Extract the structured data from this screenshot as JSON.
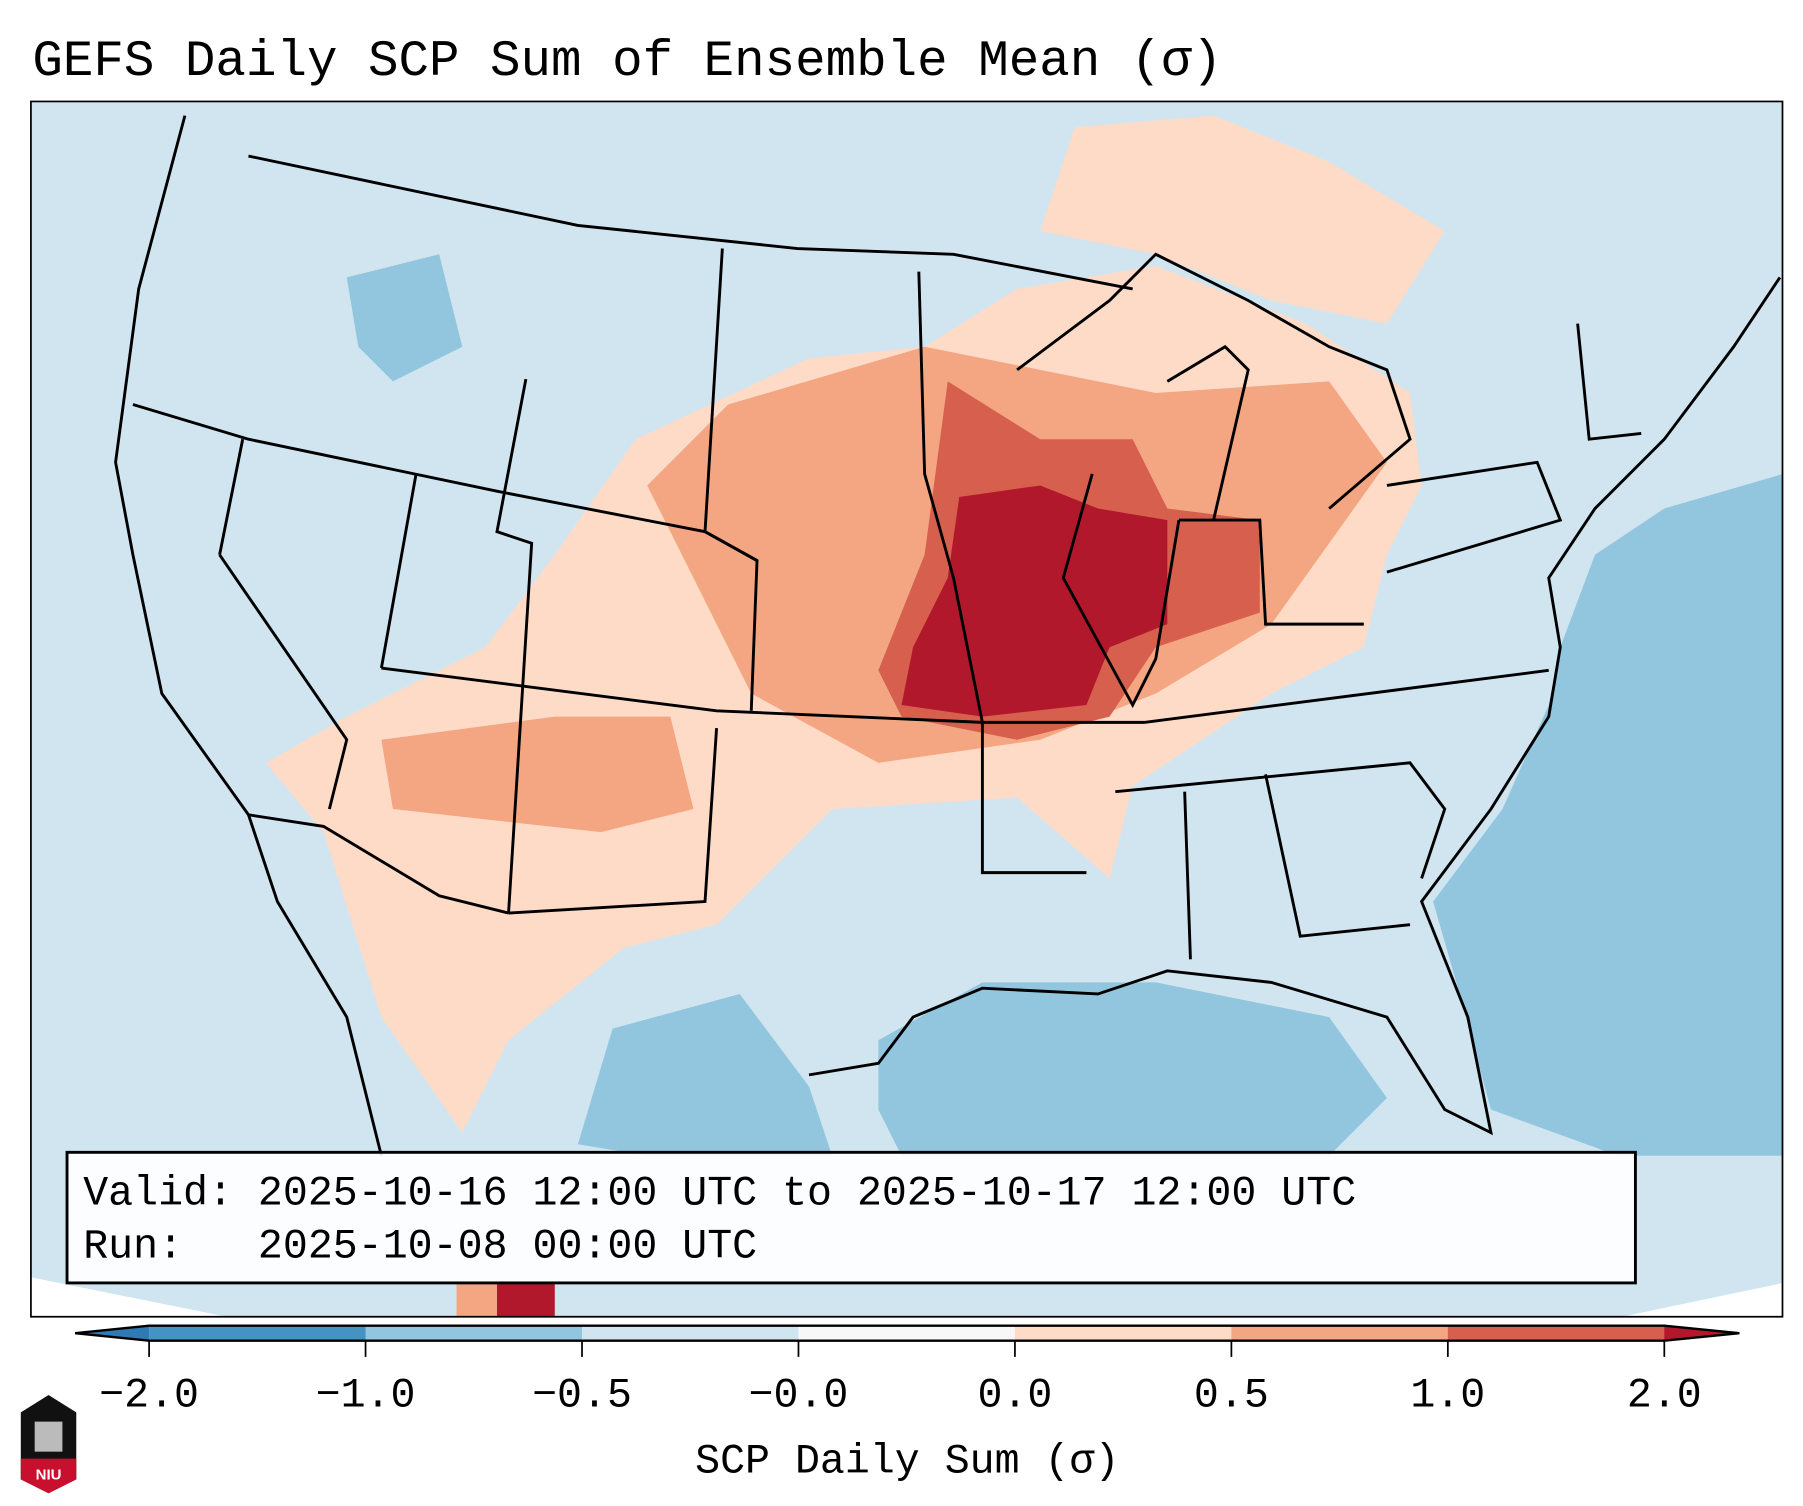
{
  "chart_data": {
    "type": "heatmap",
    "title": "GEFS Daily SCP Sum of Ensemble Mean (σ)",
    "map_region": "Continental United States",
    "colorbar": {
      "label": "SCP Daily Sum (σ)",
      "tick_labels": [
        "−2.0",
        "−1.0",
        "−0.5",
        "−0.0",
        "0.0",
        "0.5",
        "1.0",
        "2.0"
      ],
      "boundaries": [
        -2.0,
        -1.0,
        -0.5,
        -0.0,
        0.0,
        0.5,
        1.0,
        2.0
      ],
      "colors": [
        "#4393c3",
        "#92c5de",
        "#d1e5f0",
        "#f7f7f7",
        "#fddbc7",
        "#f4a582",
        "#d6604d"
      ],
      "extend_low_color": "#2f79b5",
      "extend_high_color": "#b2182b"
    },
    "annotations": {
      "valid": "Valid: 2025-10-16 12:00 UTC to 2025-10-17 12:00 UTC",
      "run": "Run:   2025-10-08 00:00 UTC"
    },
    "highlights": [
      {
        "region": "Missouri / Illinois / Iowa",
        "level": "1.0 to 2.0+"
      },
      {
        "region": "Central Plains / Great Lakes",
        "level": "0.5 to 1.0"
      },
      {
        "region": "Gulf of Mexico / Atlantic",
        "level": "-1.0 to -0.5"
      }
    ]
  },
  "logo": {
    "text": "NIU"
  }
}
